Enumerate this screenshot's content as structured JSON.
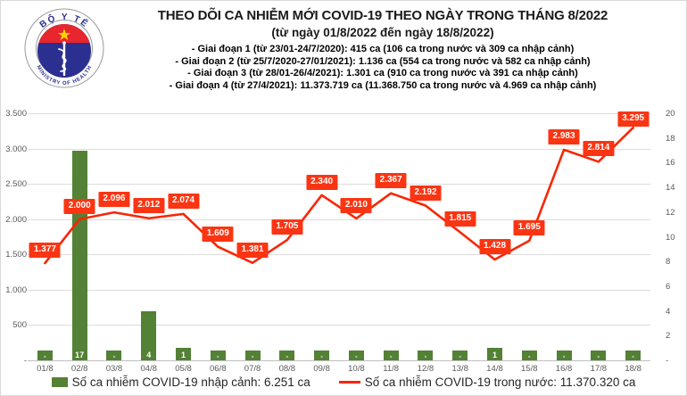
{
  "logo": {
    "top_text": "BỘ Y TẾ",
    "bottom_text": "MINISTRY OF HEALTH",
    "colors": {
      "red": "#e8262d",
      "navy": "#2b2f90",
      "star": "#ffd400"
    }
  },
  "header": {
    "title": "THEO DÕI CA NHIỄM MỚI COVID-19 THEO NGÀY TRONG THÁNG 8/2022",
    "subtitle": "(từ ngày 01/8/2022 đến ngày 18/8/2022)",
    "phases": [
      "- Giai đoạn 1 (từ 23/01-24/7/2020): 415 ca (106 ca trong nước và 309 ca nhập cảnh)",
      "- Giai đoạn 2 (từ 25/7/2020-27/01/2021): 1.136 ca (554 ca trong nước và 582 ca nhập cảnh)",
      "- Giai đoạn 3 (từ 28/01-26/4/2021): 1.301 ca (910 ca trong nước và 391 ca nhập cảnh)",
      "- Giai đoạn 4 (từ 27/4/2021): 11.373.719 ca (11.368.750 ca trong nước và 4.969 ca nhập cảnh)"
    ]
  },
  "chart_data": {
    "type": "bar",
    "subtype": "combo-bar-line-dual-axis",
    "categories": [
      "01/8",
      "02/8",
      "03/8",
      "04/8",
      "05/8",
      "06/8",
      "07/8",
      "08/8",
      "09/8",
      "10/8",
      "11/8",
      "12/8",
      "13/8",
      "14/8",
      "15/8",
      "16/8",
      "17/8",
      "18/8"
    ],
    "series": [
      {
        "name": "Số ca nhiễm COVID-19 nhập cảnh",
        "type": "bar",
        "axis": "right",
        "color": "#538135",
        "values": [
          0,
          17,
          0,
          4,
          1,
          0,
          0,
          0,
          0,
          0,
          0,
          0,
          0,
          1,
          0,
          0,
          0,
          0
        ],
        "labels": [
          "-",
          "17",
          "-",
          "4",
          "1",
          "-",
          "-",
          "-",
          "-",
          "-",
          "-",
          "-",
          "-",
          "1",
          "-",
          "-",
          "-",
          "-"
        ]
      },
      {
        "name": "Số ca nhiễm COVID-19 trong nước",
        "type": "line",
        "axis": "left",
        "color": "#f92504",
        "label_bg": "#fb3513",
        "values": [
          1377,
          2000,
          2096,
          2012,
          2074,
          1609,
          1381,
          1705,
          2340,
          2010,
          2367,
          2192,
          1815,
          1428,
          1695,
          2983,
          2814,
          3295
        ],
        "labels": [
          "1.377",
          "2.000",
          "2.096",
          "2.012",
          "2.074",
          "1.609",
          "1.381",
          "1.705",
          "2.340",
          "2.010",
          "2.367",
          "2.192",
          "1.815",
          "1.428",
          "1.695",
          "2.983",
          "2.814",
          "3.295"
        ]
      }
    ],
    "left_axis": {
      "min": 0,
      "max": 3500,
      "step": 500,
      "ticks": [
        "3.500",
        "3.000",
        "2.500",
        "2.000",
        "1.500",
        "1.000",
        "500",
        "-"
      ]
    },
    "right_axis": {
      "min": 0,
      "max": 20,
      "step": 2,
      "ticks": [
        "20",
        "18",
        "16",
        "14",
        "12",
        "10",
        "8",
        "6",
        "4",
        "2",
        "-"
      ]
    },
    "grid": "horizontal-left-axis",
    "legend_position": "bottom",
    "legend": [
      {
        "swatch": "bar",
        "label": "Số ca nhiễm COVID-19 nhập cảnh: 6.251 ca"
      },
      {
        "swatch": "line",
        "label": "Số ca nhiễm COVID-19 trong nước: 11.370.320 ca"
      }
    ]
  }
}
